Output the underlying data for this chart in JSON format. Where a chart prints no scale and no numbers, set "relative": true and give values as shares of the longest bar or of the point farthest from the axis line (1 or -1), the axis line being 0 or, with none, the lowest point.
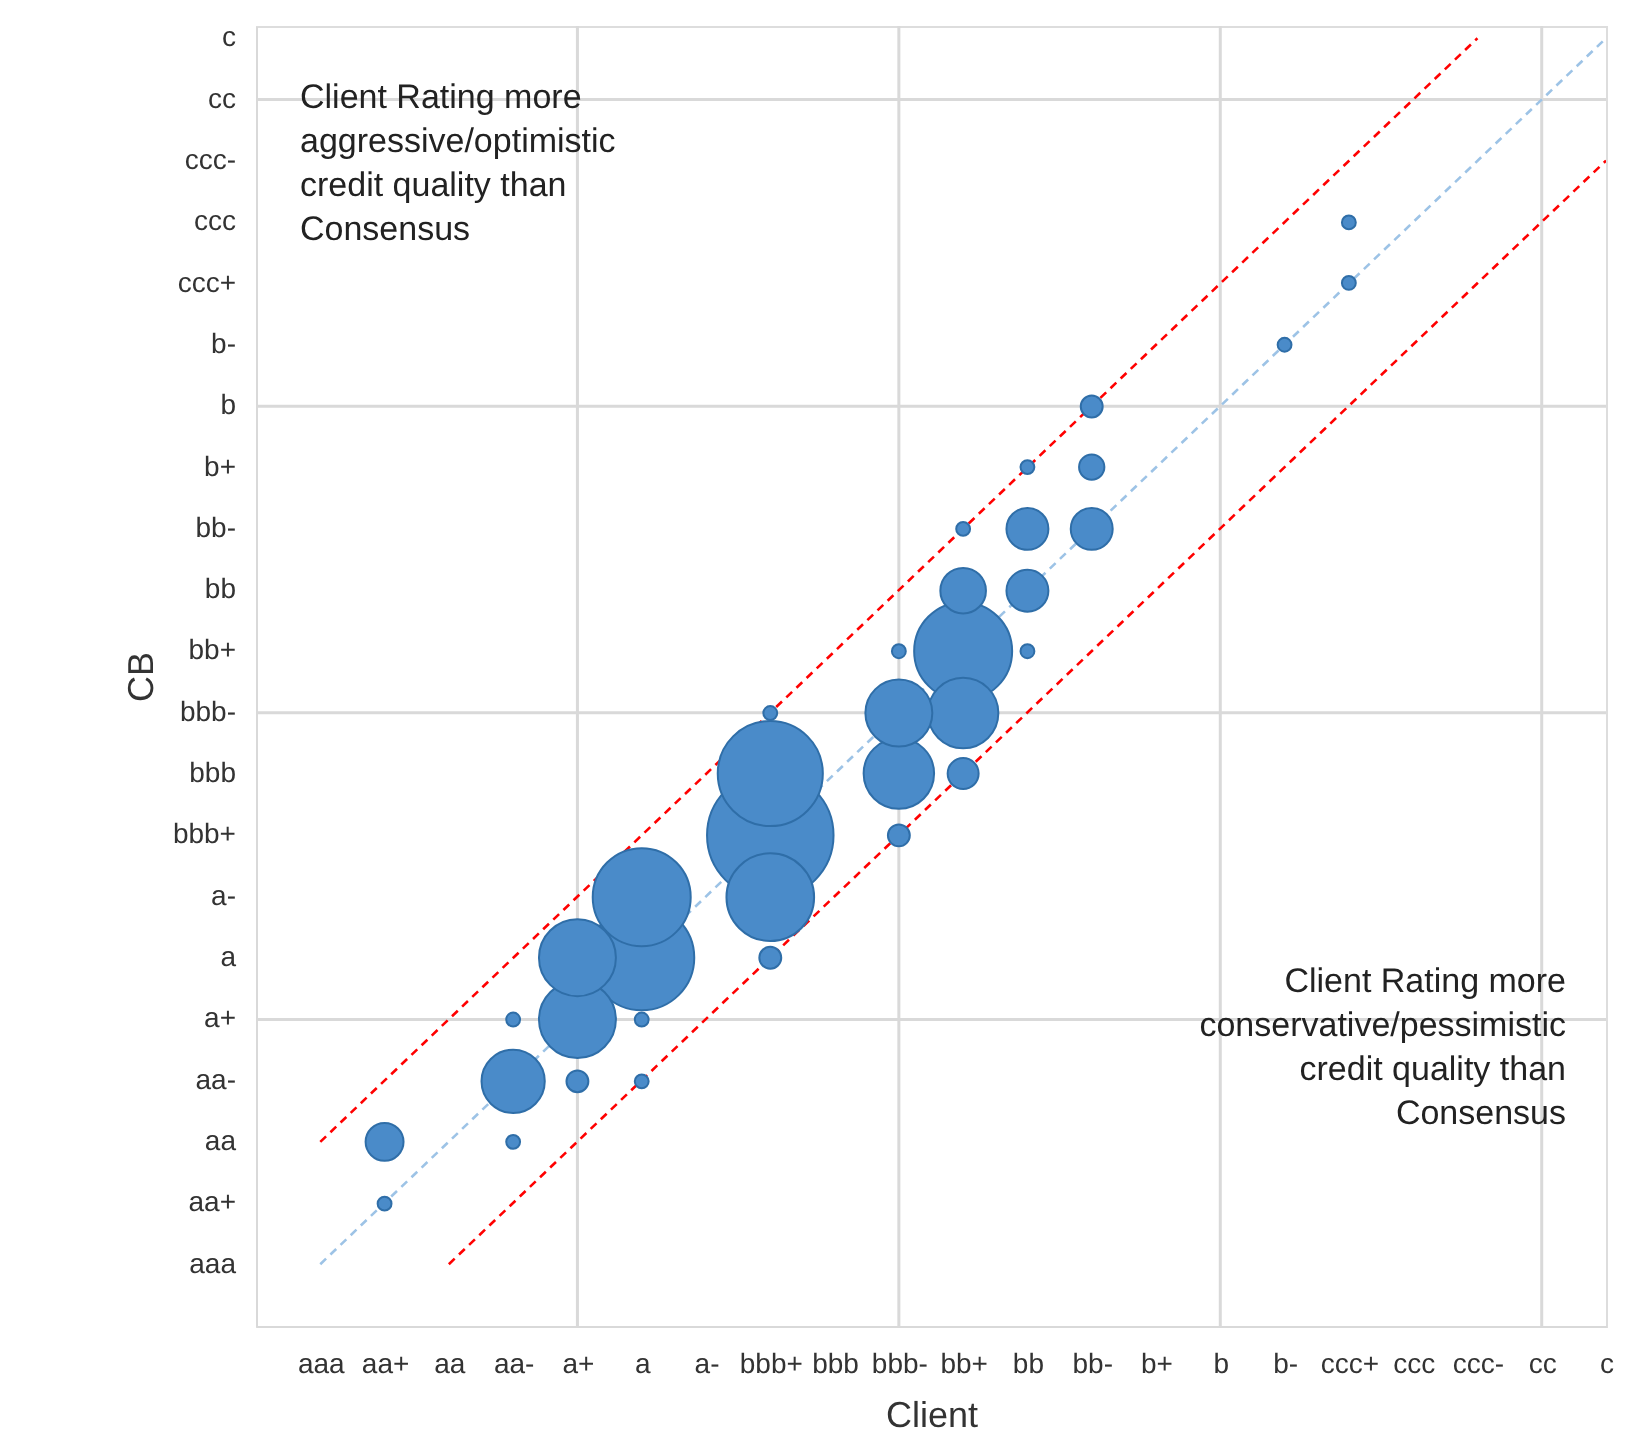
{
  "chart_data": {
    "type": "bubble",
    "xlabel": "Client",
    "ylabel": "CB",
    "relative": true,
    "categories": [
      "aaa",
      "aa+",
      "aa",
      "aa-",
      "a+",
      "a",
      "a-",
      "bbb+",
      "bbb",
      "bbb-",
      "bb+",
      "bb",
      "bb-",
      "b+",
      "b",
      "b-",
      "ccc+",
      "ccc",
      "ccc-",
      "cc",
      "c"
    ],
    "y_categories": [
      "c",
      "cc",
      "ccc-",
      "ccc",
      "ccc+",
      "b-",
      "b",
      "b+",
      "bb-",
      "bb",
      "bb+",
      "bbb-",
      "bbb",
      "bbb+",
      "a-",
      "a",
      "a+",
      "aa-",
      "aa",
      "aa+",
      "aaa"
    ],
    "grid": true,
    "marker": "circle",
    "annotations": [
      "Client Rating more\naggressive/optimistic\ncredit quality than\nConsensus",
      "Client Rating more\nconservative/pessimistic\ncredit quality than\nConsensus"
    ],
    "series": [
      {
        "type": "line",
        "color": "#9dc3e6",
        "line_style": "dashed",
        "marker": "none",
        "x": [
          "aaa",
          "c"
        ],
        "values": [
          0.048,
          1
        ]
      },
      {
        "type": "line",
        "color": "#ff0000",
        "line_style": "dashed",
        "marker": "none",
        "x": [
          "aaa",
          "ccc-"
        ],
        "values": [
          0.143,
          1
        ]
      },
      {
        "type": "line",
        "color": "#ff0000",
        "line_style": "dashed",
        "marker": "none",
        "x": [
          "aa",
          "c"
        ],
        "values": [
          0.048,
          0.905
        ]
      },
      {
        "color": "#4a8bc9",
        "x": [
          "bbb+",
          "a",
          "a",
          "bbb+",
          "a+",
          "a+",
          "bb+",
          "bb+",
          "bbb-",
          "bbb-",
          "aa-",
          "bb+",
          "bb",
          "bb",
          "bb-",
          "aa+",
          "bbb+",
          "bb+",
          "bb-",
          "bb-",
          "a+",
          "bbb+",
          "bbb-",
          "aa+",
          "aa-",
          "aa-",
          "a",
          "a",
          "bbb+",
          "bbb-",
          "bb+",
          "bb",
          "bb",
          "b-",
          "ccc+",
          "ccc+"
        ],
        "values": [
          0.381,
          0.286,
          0.333,
          0.429,
          0.238,
          0.286,
          0.524,
          0.476,
          0.429,
          0.476,
          0.19,
          0.571,
          0.571,
          0.619,
          0.619,
          0.143,
          0.333,
          0.429,
          0.667,
          0.714,
          0.19,
          0.286,
          0.381,
          0.095,
          0.143,
          0.238,
          0.238,
          0.19,
          0.476,
          0.524,
          0.619,
          0.667,
          0.524,
          0.762,
          0.81,
          0.857
        ],
        "sizes": [
          1,
          0.69,
          0.6,
          0.69,
          0.37,
          0.37,
          0.6,
          0.31,
          0.31,
          0.28,
          0.25,
          0.13,
          0.11,
          0.11,
          0.11,
          0.09,
          0.48,
          0.06,
          0.04,
          0.03,
          0.03,
          0.03,
          0.03,
          0.012,
          0.012,
          0.012,
          0.012,
          0.012,
          0.012,
          0.012,
          0.012,
          0.012,
          0.012,
          0.012,
          0.012,
          0.012
        ]
      }
    ]
  }
}
